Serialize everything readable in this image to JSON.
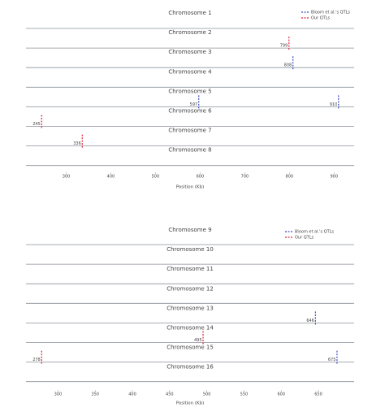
{
  "chart_data": [
    {
      "type": "strip",
      "x_label": "Position (Kb)",
      "categories": [
        "Chromosome 1",
        "Chromosome 2",
        "Chromosome 3",
        "Chromosome 4",
        "Chromosome 5",
        "Chromosome 6",
        "Chromosome 7",
        "Chromosome 8"
      ],
      "series": [
        {
          "name": "Bloom et al.'s QTLs",
          "color": "#3b4cc0",
          "values": [
            null,
            null,
            [
              808
            ],
            null,
            [
              597,
              910
            ],
            null,
            null,
            null
          ]
        },
        {
          "name": "Our QTLs",
          "color": "#e0203a",
          "values": [
            null,
            [
              799
            ],
            null,
            null,
            null,
            [
              245
            ],
            [
              336
            ],
            null
          ]
        }
      ],
      "xlim": [
        210,
        945
      ],
      "xticks": [
        300,
        400,
        500,
        600,
        700,
        800,
        900
      ],
      "legend": "upper right"
    },
    {
      "type": "strip",
      "x_label": "Position (Kb)",
      "categories": [
        "Chromosome 9",
        "Chromosome 10",
        "Chromosome 11",
        "Chromosome 12",
        "Chromosome 13",
        "Chromosome 14",
        "Chromosome 15",
        "Chromosome 16"
      ],
      "series": [
        {
          "name": "Bloom et al.'s QTLs",
          "color": "#3b4cc0",
          "values": [
            null,
            null,
            null,
            null,
            [
              646
            ],
            null,
            [
              675
            ],
            null
          ]
        },
        {
          "name": "Our QTLs",
          "color": "#e0203a",
          "values": [
            null,
            null,
            null,
            null,
            null,
            [
              495
            ],
            [
              278
            ],
            null
          ]
        }
      ],
      "xlim": [
        257,
        698
      ],
      "xticks": [
        300,
        350,
        400,
        450,
        500,
        550,
        600,
        650
      ],
      "legend": "upper right"
    }
  ]
}
